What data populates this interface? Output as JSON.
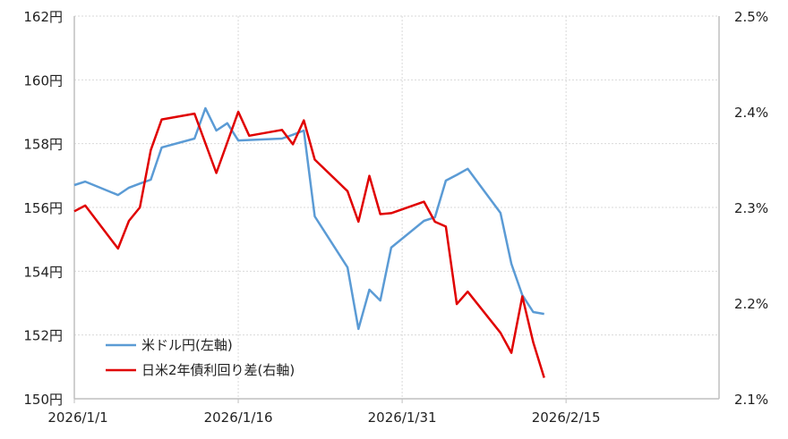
{
  "chart_data": {
    "type": "line",
    "title": "",
    "xlabel": "",
    "ylabel_left": "",
    "ylabel_right": "",
    "x_ticks": [
      "2026/1/1",
      "2026/1/16",
      "2026/1/31",
      "2026/2/15"
    ],
    "xlim": [
      "2026/1/1",
      "2026/3/1"
    ],
    "left_axis": {
      "ylim": [
        150,
        162
      ],
      "ticks": [
        "150円",
        "152円",
        "154円",
        "156円",
        "158円",
        "160円",
        "162円"
      ]
    },
    "right_axis": {
      "ylim": [
        2.1,
        2.5
      ],
      "ticks": [
        "2.1%",
        "2.2%",
        "2.3%",
        "2.4%",
        "2.5%"
      ]
    },
    "grid": true,
    "legend_position": "bottom-left",
    "series": [
      {
        "name": "米ドル円(左軸)",
        "axis": "left",
        "color": "#5b9bd5",
        "points": [
          [
            "2026/1/1",
            156.7
          ],
          [
            "2026/1/2",
            156.81
          ],
          [
            "2026/1/5",
            156.39
          ],
          [
            "2026/1/6",
            156.62
          ],
          [
            "2026/1/7",
            156.75
          ],
          [
            "2026/1/8",
            156.87
          ],
          [
            "2026/1/9",
            157.88
          ],
          [
            "2026/1/12",
            158.16
          ],
          [
            "2026/1/13",
            159.11
          ],
          [
            "2026/1/14",
            158.41
          ],
          [
            "2026/1/15",
            158.64
          ],
          [
            "2026/1/16",
            158.1
          ],
          [
            "2026/1/20",
            158.16
          ],
          [
            "2026/1/21",
            158.28
          ],
          [
            "2026/1/22",
            158.41
          ],
          [
            "2026/1/23",
            155.72
          ],
          [
            "2026/1/26",
            154.12
          ],
          [
            "2026/1/27",
            152.19
          ],
          [
            "2026/1/28",
            153.42
          ],
          [
            "2026/1/29",
            153.08
          ],
          [
            "2026/1/30",
            154.74
          ],
          [
            "2026/2/2",
            155.58
          ],
          [
            "2026/2/3",
            155.69
          ],
          [
            "2026/2/4",
            156.84
          ],
          [
            "2026/2/5",
            157.02
          ],
          [
            "2026/2/6",
            157.21
          ],
          [
            "2026/2/9",
            155.83
          ],
          [
            "2026/2/10",
            154.23
          ],
          [
            "2026/2/11",
            153.25
          ],
          [
            "2026/2/12",
            152.72
          ],
          [
            "2026/2/13",
            152.66
          ]
        ]
      },
      {
        "name": "日米2年債利回り差(右軸)",
        "axis": "right",
        "color": "#e00000",
        "points": [
          [
            "2026/1/1",
            2.296
          ],
          [
            "2026/1/2",
            2.302
          ],
          [
            "2026/1/5",
            2.257
          ],
          [
            "2026/1/6",
            2.286
          ],
          [
            "2026/1/7",
            2.3
          ],
          [
            "2026/1/8",
            2.36
          ],
          [
            "2026/1/9",
            2.392
          ],
          [
            "2026/1/12",
            2.398
          ],
          [
            "2026/1/14",
            2.336
          ],
          [
            "2026/1/16",
            2.4
          ],
          [
            "2026/1/17",
            2.375
          ],
          [
            "2026/1/20",
            2.381
          ],
          [
            "2026/1/21",
            2.366
          ],
          [
            "2026/1/22",
            2.391
          ],
          [
            "2026/1/23",
            2.35
          ],
          [
            "2026/1/26",
            2.317
          ],
          [
            "2026/1/27",
            2.285
          ],
          [
            "2026/1/28",
            2.333
          ],
          [
            "2026/1/29",
            2.293
          ],
          [
            "2026/1/30",
            2.294
          ],
          [
            "2026/2/2",
            2.306
          ],
          [
            "2026/2/3",
            2.285
          ],
          [
            "2026/2/4",
            2.28
          ],
          [
            "2026/2/5",
            2.199
          ],
          [
            "2026/2/6",
            2.212
          ],
          [
            "2026/2/9",
            2.169
          ],
          [
            "2026/2/10",
            2.148
          ],
          [
            "2026/2/11",
            2.207
          ],
          [
            "2026/2/12",
            2.159
          ],
          [
            "2026/2/13",
            2.122
          ]
        ]
      }
    ]
  }
}
